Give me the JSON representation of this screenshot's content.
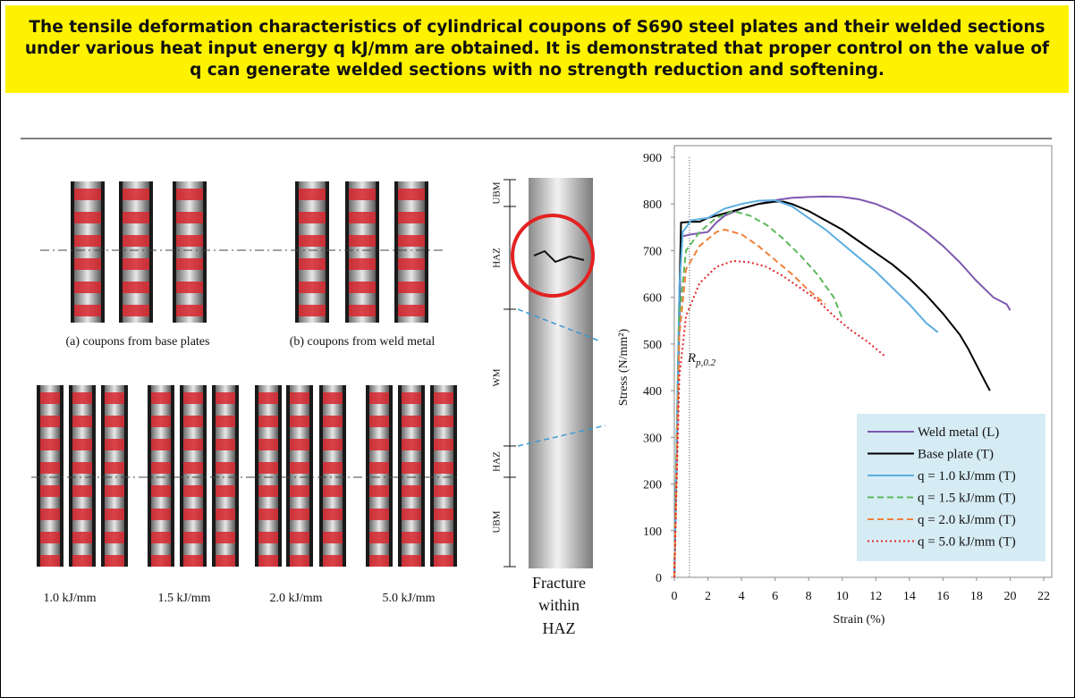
{
  "header": {
    "title": "The tensile deformation characteristics of cylindrical coupons of S690 steel plates and their welded sections under various heat input energy q kJ/mm are obtained.  It is demonstrated that proper control on the value of q can generate welded sections with no strength reduction and softening."
  },
  "photos": {
    "caption_a": "(a) coupons from base plates",
    "caption_b": "(b) coupons from weld metal",
    "heat_inputs": [
      "1.0 kJ/mm",
      "1.5 kJ/mm",
      "2.0 kJ/mm",
      "5.0 kJ/mm"
    ]
  },
  "fracture": {
    "zones": [
      "UBM",
      "HAZ",
      "WM",
      "HAZ",
      "UBM"
    ],
    "caption": [
      "Fracture",
      "within",
      "HAZ"
    ]
  },
  "chart_data": {
    "type": "line",
    "x_label": "Strain (%)",
    "y_label": "Stress (N/mm²)",
    "xlim": [
      0,
      22
    ],
    "xticks": [
      0,
      2,
      4,
      6,
      8,
      10,
      12,
      14,
      16,
      18,
      20,
      22
    ],
    "ylim": [
      0,
      900
    ],
    "yticks": [
      0,
      100,
      200,
      300,
      400,
      500,
      600,
      700,
      800,
      900
    ],
    "legend": "lower right",
    "annotation": {
      "text": "R",
      "subscript": "p,0.2",
      "x": 0.9
    },
    "series": [
      {
        "name": "Weld metal (L)",
        "color": "#7e57b0",
        "dash": "solid",
        "x": [
          0,
          0.4,
          1,
          2,
          2.5,
          3,
          4,
          5,
          6,
          7,
          8,
          9,
          10,
          11,
          12,
          13,
          14,
          15,
          16,
          17,
          18,
          19,
          19.8,
          20
        ],
        "values": [
          0,
          730,
          735,
          740,
          760,
          775,
          790,
          800,
          808,
          813,
          815,
          816,
          815,
          810,
          800,
          785,
          765,
          740,
          710,
          675,
          635,
          600,
          585,
          572
        ]
      },
      {
        "name": "Base plate (T)",
        "color": "#000000",
        "dash": "solid",
        "x": [
          0,
          0.3,
          0.4,
          1,
          1.5,
          2,
          3,
          4,
          5,
          6,
          6.5,
          7,
          8,
          9,
          10,
          11,
          12,
          13,
          14,
          15,
          16,
          17,
          17.5,
          18,
          18.5,
          18.8
        ],
        "values": [
          0,
          600,
          760,
          762,
          762,
          770,
          780,
          790,
          800,
          805,
          805,
          800,
          785,
          765,
          745,
          720,
          695,
          670,
          640,
          605,
          565,
          520,
          490,
          455,
          420,
          400
        ]
      },
      {
        "name": "q = 1.0 kJ/mm (T)",
        "color": "#5aaee0",
        "dash": "solid",
        "x": [
          0,
          0.3,
          0.5,
          1,
          2,
          3,
          4,
          5,
          6,
          7,
          8,
          9,
          10,
          11,
          12,
          13,
          14,
          15,
          15.7
        ],
        "values": [
          0,
          620,
          740,
          765,
          770,
          790,
          800,
          807,
          808,
          795,
          770,
          745,
          715,
          685,
          655,
          620,
          585,
          545,
          525
        ]
      },
      {
        "name": "q = 1.5 kJ/mm (T)",
        "color": "#5cb85c",
        "dash": "dashed",
        "x": [
          0,
          0.3,
          0.7,
          1.5,
          2.5,
          3.5,
          4.5,
          5.5,
          6.5,
          7.5,
          8.5,
          9.5,
          10
        ],
        "values": [
          0,
          560,
          700,
          740,
          770,
          785,
          775,
          755,
          725,
          690,
          650,
          600,
          555
        ]
      },
      {
        "name": "q = 2.0 kJ/mm (T)",
        "color": "#f0813a",
        "dash": "dashed",
        "x": [
          0,
          0.3,
          0.7,
          1.5,
          2.5,
          3,
          4,
          5,
          6,
          7,
          8,
          9
        ],
        "values": [
          0,
          520,
          660,
          710,
          740,
          745,
          735,
          710,
          680,
          650,
          615,
          585
        ]
      },
      {
        "name": "q = 5.0 kJ/mm (T)",
        "color": "#e0262b",
        "dash": "dotted",
        "x": [
          0,
          0.3,
          0.7,
          1.5,
          2.5,
          3.5,
          4.5,
          5.5,
          6.5,
          7.5,
          8.5,
          9.5,
          10.5,
          11.5,
          12.5
        ],
        "values": [
          0,
          430,
          560,
          630,
          665,
          678,
          675,
          665,
          645,
          620,
          595,
          560,
          530,
          505,
          475
        ]
      }
    ]
  }
}
